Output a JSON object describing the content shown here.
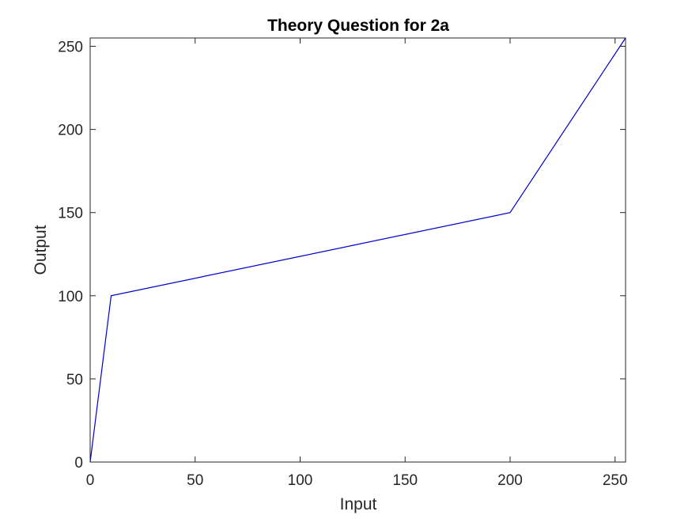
{
  "chart_data": {
    "type": "line",
    "title": "Theory Question for 2a",
    "xlabel": "Input",
    "ylabel": "Output",
    "xlim": [
      0,
      255
    ],
    "ylim": [
      0,
      255
    ],
    "xticks": [
      0,
      50,
      100,
      150,
      200,
      250
    ],
    "yticks": [
      0,
      50,
      100,
      150,
      200,
      250
    ],
    "grid": false,
    "series": [
      {
        "color": "#0000cc",
        "x": [
          0,
          10,
          200,
          255
        ],
        "y": [
          0,
          100,
          150,
          255
        ]
      }
    ]
  }
}
